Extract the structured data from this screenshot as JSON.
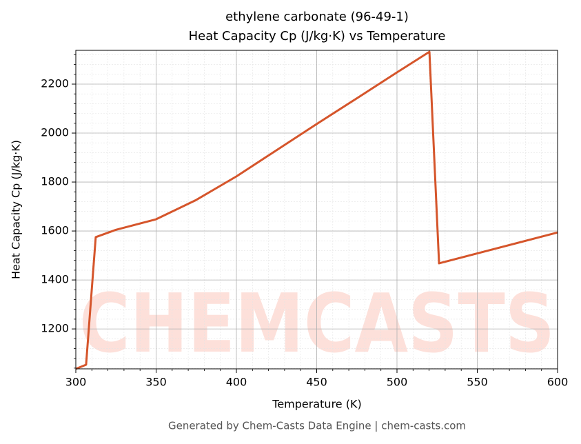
{
  "chart_data": {
    "type": "line",
    "title": "ethylene carbonate (96-49-1)",
    "subtitle": "Heat Capacity Cp (J/kg·K) vs Temperature",
    "x_label": "Temperature (K)",
    "y_label": "Heat Capacity Cp (J/kg·K)",
    "watermark": "CHEMCASTS",
    "footer": "Generated by Chem-Casts Data Engine | chem-casts.com",
    "x": [
      300,
      306.4,
      312.4,
      325,
      350,
      375,
      400,
      425,
      450,
      475,
      500,
      520.2,
      526.2,
      600
    ],
    "series": [
      {
        "name": "Cp",
        "color": "#d5552b",
        "values": [
          1037,
          1054,
          1575,
          1605,
          1648,
          1727,
          1823,
          1930,
          2037,
          2142,
          2248,
          2332,
          1468,
          1594
        ]
      }
    ],
    "xlim": [
      300,
      600
    ],
    "xticks": [
      300,
      350,
      400,
      450,
      500,
      550,
      600
    ],
    "ylim": [
      1037,
      2338
    ],
    "yticks": [
      1200,
      1400,
      1600,
      1800,
      2000,
      2200
    ],
    "grid": true,
    "minor_grid": true
  }
}
